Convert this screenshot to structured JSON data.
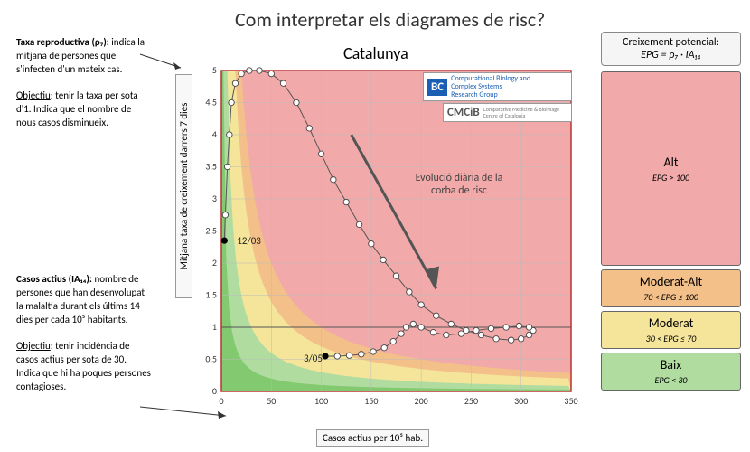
{
  "title": "Com interpretar els diagrames de risc?",
  "chart_title": "Catalunya",
  "left_blocks": {
    "rho": {
      "term": "Taxa reproductiva (ρ₇):",
      "body": "indica la mitjana de persones que s'infecten d'un mateix cas.",
      "obj_label": "Objectiu",
      "obj_body": ": tenir la taxa per sota d'1. Indica que el nombre de nous casos disminueix."
    },
    "ia": {
      "term": "Casos actius (IA₁₄):",
      "body": "nombre de persones que han desenvolupat la malaltia durant els últims 14 dies per cada 10⁵ habitants.",
      "obj_label": "Objectiu",
      "obj_body": ": tenir incidència de casos actius per sota de 30. Indica que hi ha poques persones contagioses."
    }
  },
  "axes": {
    "xlabel": "Casos actius per 10⁵ hab.",
    "ylabel": "Mitjana taxa de creixement darrers 7 dies",
    "xlim": [
      0,
      350
    ],
    "ylim": [
      0,
      5
    ],
    "xticks": [
      0,
      50,
      100,
      150,
      200,
      250,
      300,
      350
    ],
    "yticks": [
      0,
      0.5,
      1,
      1.5,
      2,
      2.5,
      3,
      3.5,
      4,
      4.5,
      5
    ],
    "grid_color": "#bbb",
    "ref_line_y": 1
  },
  "risk_colors": {
    "alt": "#f2a9a9",
    "mod_alt": "#f3c089",
    "mod": "#f5e59a",
    "baix": "#b0dca0",
    "low_green": "#6fc05b"
  },
  "curve": {
    "stroke": "#555",
    "marker_stroke": "#444",
    "marker_fill": "#fff",
    "marker_r": 3.2,
    "points": [
      [
        3,
        2.35
      ],
      [
        4,
        2.75
      ],
      [
        6,
        3.5
      ],
      [
        8,
        4.0
      ],
      [
        10,
        4.5
      ],
      [
        14,
        4.8
      ],
      [
        20,
        4.95
      ],
      [
        28,
        5.0
      ],
      [
        38,
        5.0
      ],
      [
        50,
        4.95
      ],
      [
        62,
        4.8
      ],
      [
        75,
        4.5
      ],
      [
        88,
        4.1
      ],
      [
        100,
        3.7
      ],
      [
        112,
        3.3
      ],
      [
        125,
        2.95
      ],
      [
        138,
        2.6
      ],
      [
        150,
        2.3
      ],
      [
        162,
        2.05
      ],
      [
        175,
        1.8
      ],
      [
        188,
        1.55
      ],
      [
        200,
        1.35
      ],
      [
        215,
        1.18
      ],
      [
        230,
        1.05
      ],
      [
        245,
        0.95
      ],
      [
        260,
        0.88
      ],
      [
        275,
        0.82
      ],
      [
        290,
        0.8
      ],
      [
        300,
        0.82
      ],
      [
        308,
        0.88
      ],
      [
        312,
        0.95
      ],
      [
        308,
        1.0
      ],
      [
        298,
        1.02
      ],
      [
        285,
        1.0
      ],
      [
        270,
        0.98
      ],
      [
        255,
        0.95
      ],
      [
        240,
        0.9
      ],
      [
        225,
        0.88
      ],
      [
        212,
        0.92
      ],
      [
        200,
        1.0
      ],
      [
        192,
        1.05
      ],
      [
        185,
        1.0
      ],
      [
        180,
        0.9
      ],
      [
        172,
        0.78
      ],
      [
        163,
        0.68
      ],
      [
        152,
        0.62
      ],
      [
        140,
        0.58
      ],
      [
        128,
        0.56
      ],
      [
        116,
        0.55
      ],
      [
        104,
        0.55
      ]
    ],
    "labels": [
      {
        "text": "12/03",
        "x": 3,
        "y": 2.35,
        "dx": 14,
        "dy": 0,
        "solid": true
      },
      {
        "text": "3/05",
        "x": 104,
        "y": 0.55,
        "dx": -24,
        "dy": 2,
        "solid": true
      }
    ]
  },
  "evolution_arrow": {
    "text": "Evolució diària de la corba de risc"
  },
  "logos": {
    "biocom": {
      "mark": "BC",
      "mark_bg": "#1b5fb5",
      "text1": "Computational Biology and",
      "text2": "Complex Systems",
      "text3": "Research Group"
    },
    "cmcib": {
      "mark": "CMCiB",
      "text1": "Comparative Medicine & Bioimage",
      "text2": "Centre of Catalonia"
    }
  },
  "legend": {
    "head_line1": "Creixement potencial:",
    "head_formula": "EPG = ρ₇ · IA₁₄",
    "levels": [
      {
        "name": "Alt",
        "cond": "EPG > 100",
        "color_key": "alt",
        "tall": true
      },
      {
        "name": "Moderat-Alt",
        "cond": "70 < EPG ≤ 100",
        "color_key": "mod_alt"
      },
      {
        "name": "Moderat",
        "cond": "30 < EPG ≤ 70",
        "color_key": "mod"
      },
      {
        "name": "Baix",
        "cond": "EPG < 30",
        "color_key": "baix"
      }
    ]
  }
}
